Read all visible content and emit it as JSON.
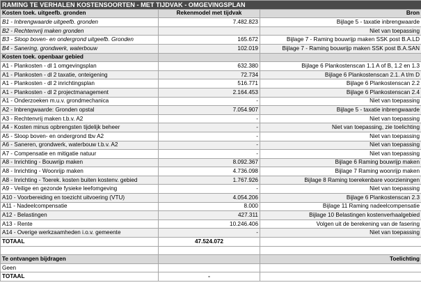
{
  "title": "RAMING TE VERHALEN KOSTENSOORTEN - MET TIJDVAK - OMGEVINGSPLAN",
  "section1": {
    "header": "Kosten toek. uitgeefb. gronden",
    "col2": "Rekenmodel met tijdvak",
    "col3": "Bron",
    "rows": [
      {
        "name": "B1 - Inbrengwaarde uitgeefb. gronden",
        "value": "7.482.823",
        "source": "Bijlage 5 - taxatie inbrengwaarde"
      },
      {
        "name": "B2 - Rechtenvrij maken gronden",
        "value": "",
        "source": "Niet van toepassing"
      },
      {
        "name": "B3 - Sloop boven- en ondergrond uitgeefb. Gronden",
        "value": "165.672",
        "source": "Bijlage 7 - Raming bouwrijp maken SSK post B.A.LD"
      },
      {
        "name": "B4 - Sanering, grondwerk, waterbouw",
        "value": "102.019",
        "source": "Bijlage 7 - Raming bouwrijp maken SSK post B.A.SAN"
      }
    ]
  },
  "section2": {
    "header": "Kosten toek. openbaar gebied",
    "rows": [
      {
        "name": "A1 - Plankosten - dl 1 omgevingsplan",
        "value": "632.380",
        "source": "Bijlage 6 Plankostenscan 1.1 A of B, 1.2 en 1.3"
      },
      {
        "name": "A1 - Plankosten - dl 2 taxatie, onteigening",
        "value": "72.734",
        "source": "Bijlage 6 Plankostenscan 2.1. A t/m D"
      },
      {
        "name": "A1 - Plankosten - dl 2 inrichtingsplan",
        "value": "516.771",
        "source": "Bijlage 6 Plankostenscan 2.2"
      },
      {
        "name": "A1 - Plankosten - dl 2 projectmanagement",
        "value": "2.164.453",
        "source": "Bijlage 6 Plankostenscan 2.4"
      },
      {
        "name": "A1 - Onderzoeken m.u.v. grondmechanica",
        "value": "-",
        "source": "Niet van toepassing"
      },
      {
        "name": "A2 - Inbrengwaarde: Gronden opstal",
        "value": "7.054.907",
        "source": "Bijlage 5 - taxatie inbrengwaarde"
      },
      {
        "name": "A3 - Rechtenvrij maken t.b.v. A2",
        "value": "-",
        "source": "Niet van toepassing"
      },
      {
        "name": "A4 - Kosten minus opbrengsten tijdelijk beheer",
        "value": "-",
        "source": "Niet van toepassing, zie toelichting"
      },
      {
        "name": "A5 - Sloop boven- en ondergrond tbv A2",
        "value": "-",
        "source": "Niet van toepassing"
      },
      {
        "name": "A6 - Saneren, grondwerk, waterbouw t.b.v. A2",
        "value": "-",
        "source": "Niet van toepassing"
      },
      {
        "name": "A7 - Compensatie en mitigatie natuur",
        "value": "-",
        "source": "Niet van toepassing"
      },
      {
        "name": "A8 - Inrichting - Bouwrijp maken",
        "value": "8.092.367",
        "source": "Bijlage 6 Raming bouwrijp maken"
      },
      {
        "name": "A8 - Inrichting - Woonrijp maken",
        "value": "4.736.098",
        "source": "Bijlage 7 Raming woonrijp maken"
      },
      {
        "name": "A8 - Inrichting - Toerek. kosten buiten kostenv. gebied",
        "value": "1.767.926",
        "source": "Bijlage 8 Raming toerekenbare voorzieningen"
      },
      {
        "name": "A9 - Veilige en gezonde fysieke leefomgeving",
        "value": "-",
        "source": "Niet van toepassing"
      },
      {
        "name": "A10 - Voorbereiding en toezicht uitvoering (VTU)",
        "value": "4.054.206",
        "source": "Bijlage 6 Plankostenscan 2.3"
      },
      {
        "name": "A11 - Nadeelcompensatie",
        "value": "8.000",
        "source": "Bijlage 11 Raming nadeelcompensatie"
      },
      {
        "name": "A12 - Belastingen",
        "value": "427.311",
        "source": "Bijlage 10 Belastingen kostenverhaalgebied"
      },
      {
        "name": "A13 - Rente",
        "value": "10.246.406",
        "source": "Volgen uit de berekening van de fasering"
      },
      {
        "name": "A14 - Overige werkzaamheden i.o.v. gemeente",
        "value": "-",
        "source": "Niet van toepassing"
      }
    ]
  },
  "total": {
    "label": "TOTAAL",
    "value": "47.524.072"
  },
  "section3": {
    "header": "Te ontvangen bijdragen",
    "col3": "Toelichting",
    "rows": [
      {
        "name": "Geen",
        "value": "",
        "source": ""
      }
    ]
  },
  "total2": {
    "label": "TOTAAL",
    "value": "-"
  }
}
